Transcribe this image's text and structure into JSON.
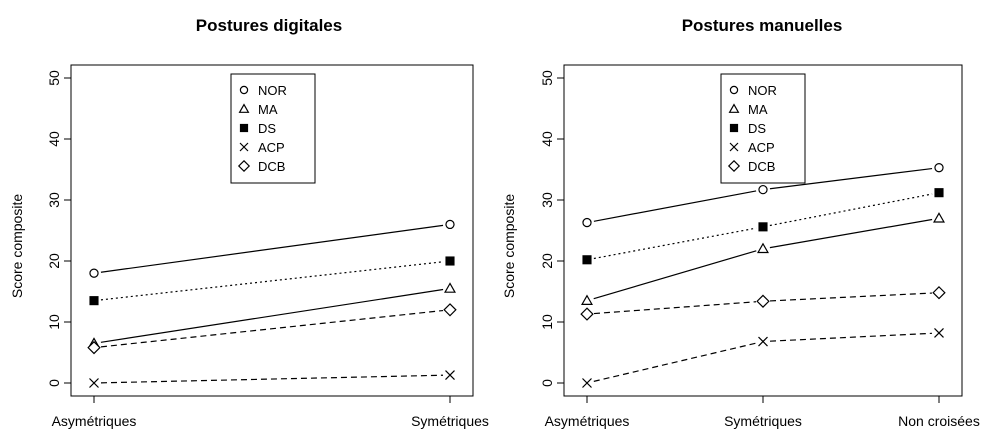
{
  "chart_data": [
    {
      "type": "line",
      "title": "Postures digitales",
      "xlabel": "",
      "ylabel": "Score composite",
      "categories": [
        "Asymétriques",
        "Symétriques"
      ],
      "ylim": [
        0,
        50
      ],
      "yticks": [
        "0",
        "10",
        "20",
        "30",
        "40",
        "50"
      ],
      "grid": false,
      "legend_position": "top-center",
      "series": [
        {
          "name": "NOR",
          "values": [
            18,
            26
          ],
          "marker": "circle",
          "line": "solid"
        },
        {
          "name": "MA",
          "values": [
            6.5,
            15.5
          ],
          "marker": "triangle",
          "line": "solid"
        },
        {
          "name": "DS",
          "values": [
            13.5,
            20
          ],
          "marker": "square-filled",
          "line": "dotted"
        },
        {
          "name": "ACP",
          "values": [
            0,
            1.3
          ],
          "marker": "x",
          "line": "dashed"
        },
        {
          "name": "DCB",
          "values": [
            5.8,
            12
          ],
          "marker": "diamond",
          "line": "dashed"
        }
      ]
    },
    {
      "type": "line",
      "title": "Postures manuelles",
      "xlabel": "",
      "ylabel": "Score composite",
      "categories": [
        "Asymétriques",
        "Symétriques",
        "Non croisées"
      ],
      "ylim": [
        0,
        50
      ],
      "yticks": [
        "0",
        "10",
        "20",
        "30",
        "40",
        "50"
      ],
      "grid": false,
      "legend_position": "top-center",
      "series": [
        {
          "name": "NOR",
          "values": [
            26.3,
            31.7,
            35.3
          ],
          "marker": "circle",
          "line": "solid"
        },
        {
          "name": "MA",
          "values": [
            13.5,
            22,
            27
          ],
          "marker": "triangle",
          "line": "solid"
        },
        {
          "name": "DS",
          "values": [
            20.2,
            25.6,
            31.2
          ],
          "marker": "square-filled",
          "line": "dotted"
        },
        {
          "name": "ACP",
          "values": [
            0,
            6.8,
            8.2
          ],
          "marker": "x",
          "line": "dashed"
        },
        {
          "name": "DCB",
          "values": [
            11.3,
            13.4,
            14.8
          ],
          "marker": "diamond",
          "line": "dashed"
        }
      ]
    }
  ]
}
